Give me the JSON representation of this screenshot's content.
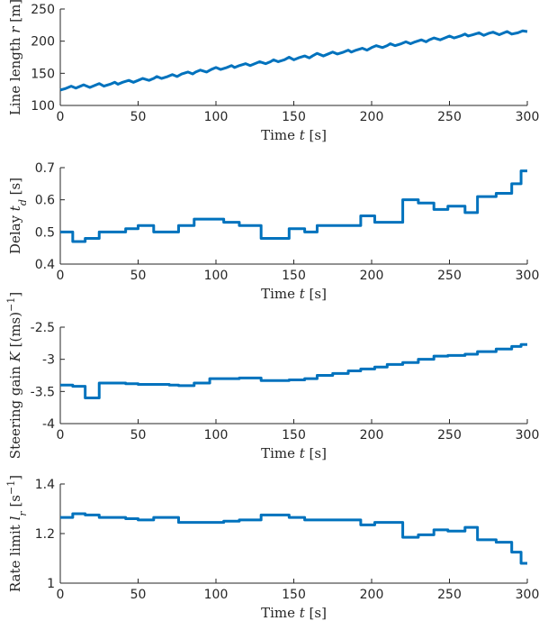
{
  "colors": {
    "series": "#0072BD",
    "axis": "#262626",
    "background": "#ffffff"
  },
  "chart_data": [
    {
      "type": "line",
      "xlabel": {
        "pre": "Time ",
        "var": "t",
        "sub": "",
        "post": " [s]"
      },
      "ylabel": {
        "pre": "Line length ",
        "var": "r",
        "sub": "",
        "post": " [m]",
        "sup": ""
      },
      "xlim": [
        0,
        300
      ],
      "ylim": [
        100,
        250
      ],
      "xticks": [
        0,
        50,
        100,
        150,
        200,
        250,
        300
      ],
      "xtick_labels": [
        "0",
        "50",
        "100",
        "150",
        "200",
        "250",
        "300"
      ],
      "yticks": [
        100,
        150,
        200,
        250
      ],
      "ytick_labels": [
        "100",
        "150",
        "200",
        "250"
      ],
      "grid": false,
      "series": [
        {
          "step": false,
          "x": [
            0,
            3,
            7,
            10,
            12,
            15,
            19,
            22,
            25,
            28,
            32,
            35,
            37,
            40,
            44,
            47,
            50,
            53,
            57,
            60,
            62,
            65,
            69,
            72,
            75,
            78,
            82,
            85,
            87,
            90,
            94,
            97,
            100,
            103,
            107,
            110,
            112,
            115,
            119,
            122,
            125,
            128,
            132,
            135,
            137,
            140,
            144,
            147,
            150,
            153,
            157,
            160,
            162,
            165,
            169,
            172,
            175,
            178,
            182,
            185,
            187,
            190,
            194,
            197,
            200,
            203,
            207,
            210,
            212,
            215,
            219,
            222,
            225,
            228,
            232,
            235,
            237,
            240,
            244,
            247,
            250,
            253,
            257,
            260,
            262,
            265,
            269,
            272,
            275,
            278,
            282,
            285,
            287,
            290,
            294,
            297,
            300
          ],
          "y": [
            124,
            126,
            130,
            127,
            129,
            132,
            128,
            131,
            134,
            130,
            133,
            136,
            133,
            136,
            139,
            136,
            139,
            142,
            139,
            142,
            145,
            142,
            145,
            148,
            145,
            149,
            152,
            149,
            152,
            155,
            152,
            156,
            159,
            156,
            159,
            162,
            159,
            162,
            165,
            162,
            165,
            168,
            165,
            168,
            171,
            168,
            171,
            175,
            171,
            174,
            177,
            174,
            177,
            181,
            177,
            180,
            183,
            180,
            183,
            186,
            183,
            186,
            189,
            186,
            190,
            193,
            190,
            193,
            196,
            193,
            196,
            199,
            196,
            199,
            202,
            199,
            202,
            205,
            202,
            205,
            208,
            205,
            208,
            211,
            208,
            210,
            213,
            209,
            212,
            214,
            210,
            213,
            215,
            211,
            213,
            216,
            215
          ]
        }
      ]
    },
    {
      "type": "line",
      "xlabel": {
        "pre": "Time ",
        "var": "t",
        "sub": "",
        "post": " [s]"
      },
      "ylabel": {
        "pre": "Delay ",
        "var": "t",
        "sub": "d",
        "post": " [s]",
        "sup": ""
      },
      "xlim": [
        0,
        300
      ],
      "ylim": [
        0.4,
        0.7
      ],
      "xticks": [
        0,
        50,
        100,
        150,
        200,
        250,
        300
      ],
      "xtick_labels": [
        "0",
        "50",
        "100",
        "150",
        "200",
        "250",
        "300"
      ],
      "yticks": [
        0.4,
        0.5,
        0.6,
        0.7
      ],
      "ytick_labels": [
        "0.4",
        "0.5",
        "0.6",
        "0.7"
      ],
      "grid": false,
      "series": [
        {
          "step": true,
          "x": [
            0,
            8,
            16,
            25,
            42,
            50,
            60,
            76,
            86,
            105,
            115,
            129,
            147,
            157,
            165,
            193,
            202,
            220,
            230,
            240,
            249,
            260,
            268,
            280,
            290,
            296,
            300
          ],
          "y": [
            0.5,
            0.47,
            0.48,
            0.5,
            0.51,
            0.52,
            0.5,
            0.52,
            0.54,
            0.53,
            0.52,
            0.48,
            0.51,
            0.5,
            0.52,
            0.55,
            0.53,
            0.6,
            0.59,
            0.57,
            0.58,
            0.56,
            0.61,
            0.62,
            0.65,
            0.69,
            0.69
          ]
        }
      ]
    },
    {
      "type": "line",
      "xlabel": {
        "pre": "Time ",
        "var": "t",
        "sub": "",
        "post": " [s]"
      },
      "ylabel": {
        "pre": "Steering gain ",
        "var": "K",
        "sub": "",
        "post": " [(ms)",
        "sup": "−1",
        "post2": "]"
      },
      "xlim": [
        0,
        300
      ],
      "ylim": [
        -4,
        -2.5
      ],
      "xticks": [
        0,
        50,
        100,
        150,
        200,
        250,
        300
      ],
      "xtick_labels": [
        "0",
        "50",
        "100",
        "150",
        "200",
        "250",
        "300"
      ],
      "yticks": [
        -4,
        -3.5,
        -3,
        -2.5
      ],
      "ytick_labels": [
        "-4",
        "-3.5",
        "-3",
        "-2.5"
      ],
      "grid": false,
      "series": [
        {
          "step": true,
          "x": [
            0,
            8,
            16,
            25,
            42,
            50,
            60,
            70,
            76,
            86,
            96,
            105,
            115,
            129,
            147,
            157,
            165,
            175,
            185,
            193,
            202,
            210,
            220,
            230,
            240,
            249,
            260,
            268,
            280,
            290,
            296,
            300
          ],
          "y": [
            -3.4,
            -3.42,
            -3.6,
            -3.37,
            -3.38,
            -3.39,
            -3.39,
            -3.4,
            -3.41,
            -3.37,
            -3.3,
            -3.3,
            -3.29,
            -3.33,
            -3.32,
            -3.3,
            -3.25,
            -3.22,
            -3.18,
            -3.15,
            -3.12,
            -3.08,
            -3.05,
            -3.0,
            -2.95,
            -2.94,
            -2.92,
            -2.88,
            -2.84,
            -2.8,
            -2.77,
            -2.77
          ]
        }
      ]
    },
    {
      "type": "line",
      "xlabel": {
        "pre": "Time ",
        "var": "t",
        "sub": "",
        "post": " [s]"
      },
      "ylabel": {
        "pre": "Rate limit ",
        "var": "l",
        "sub": "r",
        "post": " [s",
        "sup": "−1",
        "post2": "]"
      },
      "xlim": [
        0,
        300
      ],
      "ylim": [
        1.0,
        1.4
      ],
      "xticks": [
        0,
        50,
        100,
        150,
        200,
        250,
        300
      ],
      "xtick_labels": [
        "0",
        "50",
        "100",
        "150",
        "200",
        "250",
        "300"
      ],
      "yticks": [
        1.0,
        1.2,
        1.4
      ],
      "ytick_labels": [
        "1",
        "1.2",
        "1.4"
      ],
      "grid": false,
      "series": [
        {
          "step": true,
          "x": [
            0,
            8,
            16,
            25,
            42,
            50,
            60,
            76,
            86,
            105,
            115,
            129,
            147,
            157,
            165,
            193,
            202,
            220,
            230,
            240,
            249,
            260,
            268,
            280,
            290,
            296,
            300
          ],
          "y": [
            1.265,
            1.28,
            1.275,
            1.265,
            1.26,
            1.255,
            1.265,
            1.245,
            1.245,
            1.25,
            1.255,
            1.275,
            1.265,
            1.255,
            1.255,
            1.235,
            1.245,
            1.185,
            1.195,
            1.215,
            1.21,
            1.225,
            1.175,
            1.165,
            1.125,
            1.08,
            1.08
          ]
        }
      ]
    }
  ]
}
